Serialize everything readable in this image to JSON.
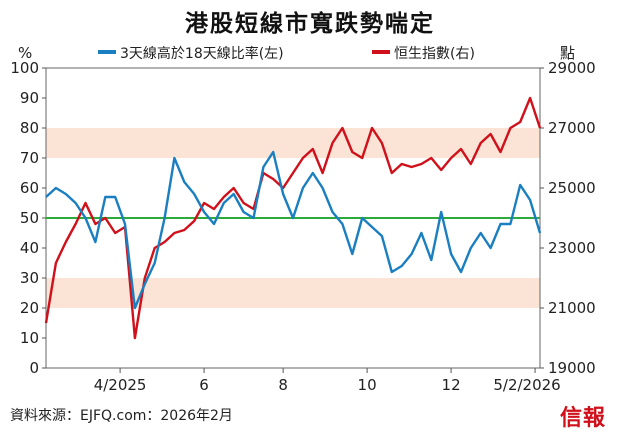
{
  "chart_data": {
    "type": "line",
    "title": "港股短線市寬跌勢喘定",
    "left_axis": {
      "unit": "%",
      "range": [
        0,
        100
      ],
      "ticks": [
        0,
        10,
        20,
        30,
        40,
        50,
        60,
        70,
        80,
        90,
        100
      ]
    },
    "right_axis": {
      "unit": "點",
      "range": [
        19000,
        29000
      ],
      "ticks": [
        19000,
        21000,
        23000,
        25000,
        27000,
        29000
      ]
    },
    "x_axis": {
      "tick_labels": [
        "4/2025",
        "6",
        "8",
        "10",
        "12",
        "5/2/2026"
      ]
    },
    "reference_line": {
      "axis": "left",
      "value": 50
    },
    "shaded_bands": [
      {
        "axis": "left",
        "from": 20,
        "to": 30
      },
      {
        "axis": "left",
        "from": 70,
        "to": 80
      }
    ],
    "x": [
      0,
      2,
      4,
      6,
      8,
      10,
      12,
      14,
      16,
      18,
      20,
      22,
      24,
      26,
      28,
      30,
      32,
      34,
      36,
      38,
      40,
      42,
      44,
      46,
      48,
      50,
      52,
      54,
      56,
      58,
      60,
      62,
      64,
      66,
      68,
      70,
      72,
      74,
      76,
      78,
      80,
      82,
      84,
      86,
      88,
      90,
      92,
      94,
      96,
      98,
      100
    ],
    "series": [
      {
        "name": "3天線高於18天線比率(左)",
        "axis": "left",
        "color": "#1a7fc1",
        "values": [
          57,
          60,
          58,
          55,
          50,
          42,
          57,
          57,
          48,
          20,
          28,
          35,
          50,
          70,
          62,
          58,
          52,
          48,
          55,
          58,
          52,
          50,
          67,
          72,
          58,
          50,
          60,
          65,
          60,
          52,
          48,
          38,
          50,
          47,
          44,
          32,
          34,
          38,
          45,
          36,
          52,
          38,
          32,
          40,
          45,
          40,
          48,
          48,
          61,
          56,
          45
        ]
      },
      {
        "name": "恒生指數(右)",
        "axis": "right",
        "color": "#d0101a",
        "values": [
          20500,
          22500,
          23200,
          23800,
          24500,
          23800,
          24000,
          23500,
          23700,
          20000,
          22000,
          23000,
          23200,
          23500,
          23600,
          23900,
          24500,
          24300,
          24700,
          25000,
          24500,
          24300,
          25500,
          25300,
          25000,
          25500,
          26000,
          26300,
          25500,
          26500,
          27000,
          26200,
          26000,
          27000,
          26500,
          25500,
          25800,
          25700,
          25800,
          26000,
          25600,
          26000,
          26300,
          25800,
          26500,
          26800,
          26200,
          27000,
          27200,
          28000,
          27000
        ]
      }
    ],
    "source_text": "資料來源：EJFQ.com：2026年2月",
    "brand": "信報"
  }
}
